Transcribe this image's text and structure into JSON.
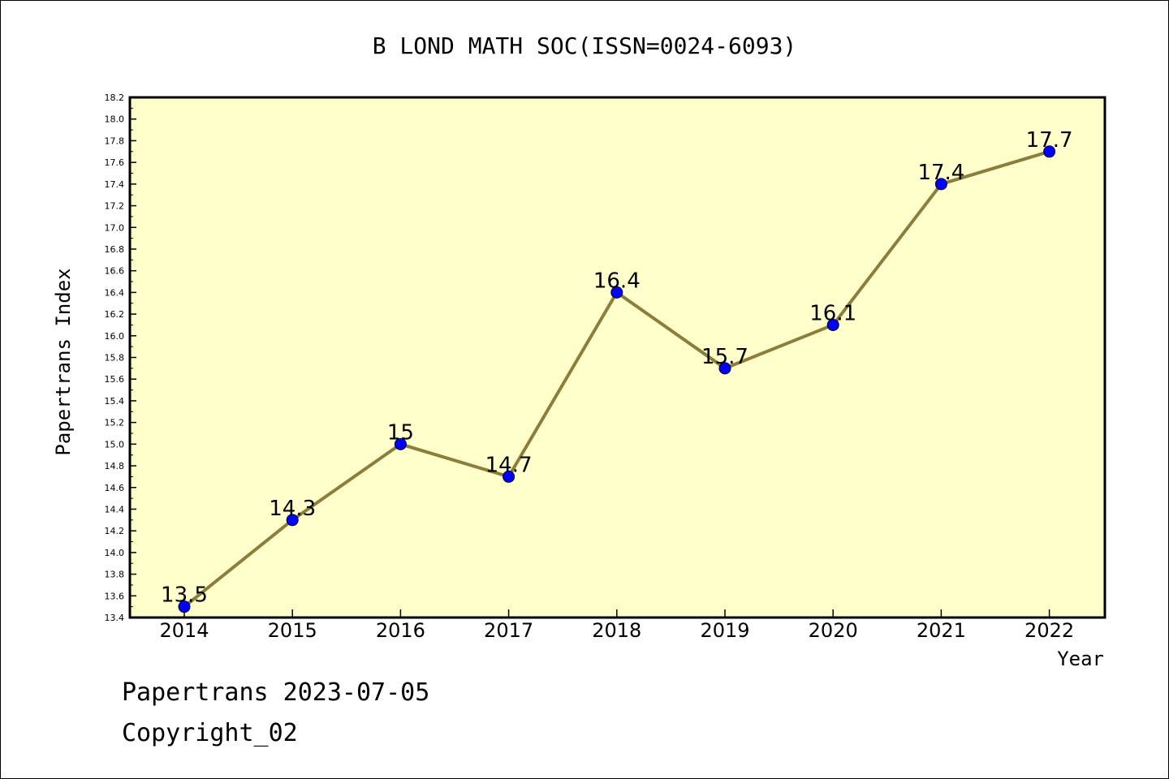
{
  "footer": {
    "line1": "Papertrans 2023-07-05",
    "line2": "Copyright_02"
  },
  "colors": {
    "plot_background": "#ffffcc",
    "line": "#8b7d3a",
    "marker": "#0000ff",
    "axis": "#000000"
  },
  "chart_data": {
    "type": "line",
    "title": "B LOND MATH SOC(ISSN=0024-6093)",
    "xlabel": "Year",
    "ylabel": "Papertrans Index",
    "categories": [
      "2014",
      "2015",
      "2016",
      "2017",
      "2018",
      "2019",
      "2020",
      "2021",
      "2022"
    ],
    "values": [
      13.5,
      14.3,
      15.0,
      14.7,
      16.4,
      15.7,
      16.1,
      17.4,
      17.7
    ],
    "data_labels": [
      "13.5",
      "14.3",
      "15",
      "14.7",
      "16.4",
      "15.7",
      "16.1",
      "17.4",
      "17.7"
    ],
    "ylim": [
      13.4,
      18.2
    ],
    "ytick_step": 0.2,
    "ytick_labels": [
      "13.4",
      "13.6",
      "13.8",
      "14.0",
      "14.2",
      "14.4",
      "14.6",
      "14.8",
      "15.0",
      "15.2",
      "15.4",
      "15.6",
      "15.8",
      "16.0",
      "16.2",
      "16.4",
      "16.6",
      "16.8",
      "17.0",
      "17.2",
      "17.4",
      "17.6",
      "17.8",
      "18.0",
      "18.2"
    ],
    "grid": false,
    "legend": "none"
  }
}
